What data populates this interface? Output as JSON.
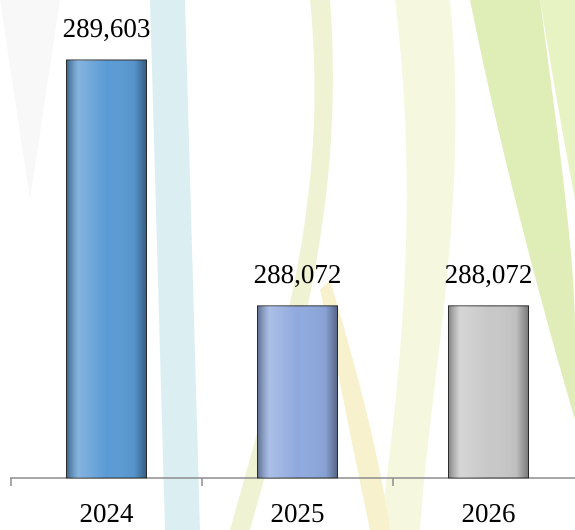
{
  "chart_data": {
    "type": "bar",
    "categories": [
      "2024",
      "2025",
      "2026"
    ],
    "values": [
      289603,
      288072,
      288072
    ],
    "value_labels": [
      "289,603",
      "288,072",
      "288,072"
    ],
    "colors": [
      "#5b9bd5",
      "#8fa9de",
      "#c8c8c8"
    ],
    "ylim": [
      287000,
      289700
    ]
  }
}
